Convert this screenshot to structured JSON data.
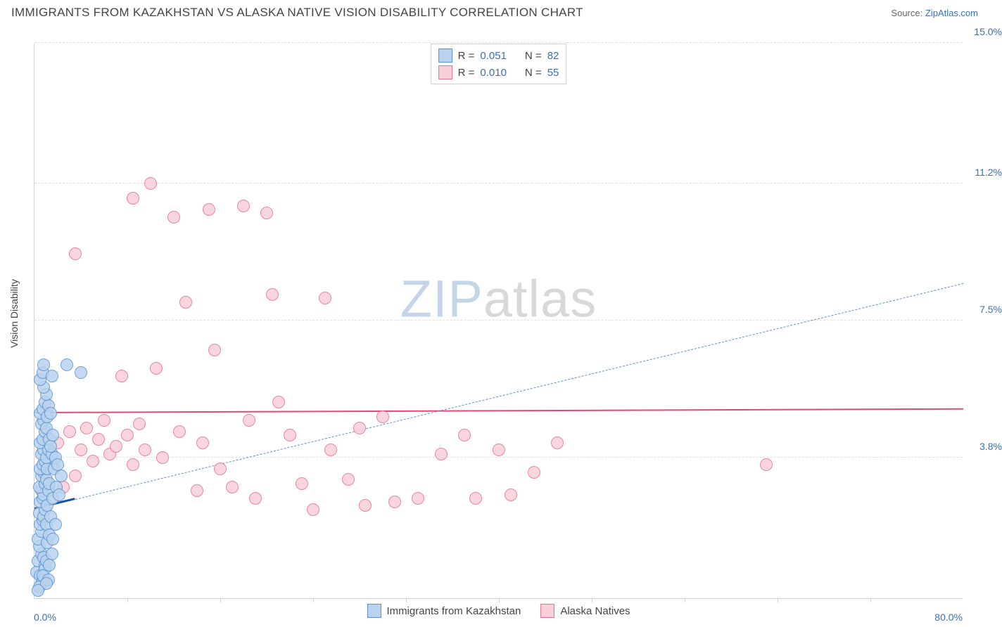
{
  "title": "IMMIGRANTS FROM KAZAKHSTAN VS ALASKA NATIVE VISION DISABILITY CORRELATION CHART",
  "source_label": "Source:",
  "source_name": "ZipAtlas.com",
  "ylabel": "Vision Disability",
  "watermark_a": "ZIP",
  "watermark_b": "atlas",
  "chart": {
    "type": "scatter",
    "xlim": [
      0.0,
      80.0
    ],
    "ylim": [
      0.0,
      15.0
    ],
    "xticks_label_min": "0.0%",
    "xticks_label_max": "80.0%",
    "yticks": [
      {
        "v": 3.8,
        "label": "3.8%"
      },
      {
        "v": 7.5,
        "label": "7.5%"
      },
      {
        "v": 11.2,
        "label": "11.2%"
      },
      {
        "v": 15.0,
        "label": "15.0%"
      }
    ],
    "xticks_minor": [
      8,
      16,
      24,
      32,
      40,
      48,
      56,
      64,
      72
    ],
    "background_color": "#ffffff",
    "grid_color": "#e0e0e0",
    "point_radius": 9,
    "series_a": {
      "name": "Immigrants from Kazakhstan",
      "fill": "#b9d3ef",
      "stroke": "#5a91d1",
      "r_label": "R =",
      "r_value": "0.051",
      "n_label": "N =",
      "n_value": "82",
      "trend_color": "#1b4fa0",
      "trend_dash_color": "#5a91d1",
      "trend_start_y": 2.4,
      "trend_end_y": 8.5,
      "solid_end_x": 3.5,
      "points": [
        [
          0.2,
          0.7
        ],
        [
          0.3,
          1.0
        ],
        [
          0.5,
          0.6
        ],
        [
          0.6,
          1.2
        ],
        [
          0.7,
          0.5
        ],
        [
          0.4,
          1.4
        ],
        [
          0.8,
          1.1
        ],
        [
          0.9,
          0.9
        ],
        [
          0.3,
          1.6
        ],
        [
          0.6,
          1.8
        ],
        [
          0.5,
          2.0
        ],
        [
          0.7,
          2.1
        ],
        [
          0.4,
          2.3
        ],
        [
          0.8,
          2.2
        ],
        [
          0.9,
          2.4
        ],
        [
          1.0,
          2.0
        ],
        [
          0.5,
          2.6
        ],
        [
          0.7,
          2.7
        ],
        [
          0.6,
          2.9
        ],
        [
          0.8,
          2.8
        ],
        [
          1.1,
          2.5
        ],
        [
          0.4,
          3.0
        ],
        [
          0.9,
          3.1
        ],
        [
          1.2,
          2.9
        ],
        [
          0.6,
          3.3
        ],
        [
          0.8,
          3.4
        ],
        [
          1.0,
          3.2
        ],
        [
          0.5,
          3.5
        ],
        [
          0.7,
          3.6
        ],
        [
          1.3,
          3.1
        ],
        [
          0.9,
          3.7
        ],
        [
          1.1,
          3.5
        ],
        [
          0.6,
          3.9
        ],
        [
          0.8,
          4.0
        ],
        [
          1.0,
          3.8
        ],
        [
          0.5,
          4.2
        ],
        [
          0.7,
          4.3
        ],
        [
          1.2,
          4.0
        ],
        [
          0.9,
          4.5
        ],
        [
          0.6,
          4.7
        ],
        [
          0.8,
          4.8
        ],
        [
          1.0,
          4.6
        ],
        [
          0.5,
          5.0
        ],
        [
          0.7,
          5.1
        ],
        [
          1.1,
          4.9
        ],
        [
          0.9,
          5.3
        ],
        [
          1.3,
          4.3
        ],
        [
          1.5,
          3.9
        ],
        [
          1.7,
          3.5
        ],
        [
          1.4,
          4.1
        ],
        [
          1.6,
          4.4
        ],
        [
          1.8,
          3.8
        ],
        [
          2.0,
          3.6
        ],
        [
          1.2,
          5.2
        ],
        [
          1.0,
          5.5
        ],
        [
          0.8,
          5.7
        ],
        [
          0.6,
          0.4
        ],
        [
          0.9,
          0.8
        ],
        [
          1.1,
          1.5
        ],
        [
          1.4,
          2.2
        ],
        [
          1.6,
          2.7
        ],
        [
          1.9,
          3.0
        ],
        [
          0.4,
          0.3
        ],
        [
          0.7,
          0.6
        ],
        [
          1.0,
          1.0
        ],
        [
          1.3,
          1.7
        ],
        [
          0.5,
          5.9
        ],
        [
          0.7,
          6.1
        ],
        [
          1.2,
          0.5
        ],
        [
          1.5,
          1.2
        ],
        [
          1.8,
          2.0
        ],
        [
          2.1,
          2.8
        ],
        [
          1.0,
          0.4
        ],
        [
          1.3,
          0.9
        ],
        [
          1.6,
          1.6
        ],
        [
          0.3,
          0.2
        ],
        [
          0.8,
          6.3
        ],
        [
          1.4,
          5.0
        ],
        [
          2.3,
          3.3
        ],
        [
          2.8,
          6.3
        ],
        [
          1.5,
          6.0
        ],
        [
          4.0,
          6.1
        ]
      ]
    },
    "series_b": {
      "name": "Alaska Natives",
      "fill": "#f8d0da",
      "stroke": "#e76f8f",
      "r_label": "R =",
      "r_value": "0.010",
      "n_label": "N =",
      "n_value": "55",
      "trend_color": "#e24a73",
      "trend_start_y": 5.0,
      "trend_end_y": 5.1,
      "points": [
        [
          2.0,
          4.2
        ],
        [
          2.5,
          3.0
        ],
        [
          3.0,
          4.5
        ],
        [
          3.5,
          3.3
        ],
        [
          4.0,
          4.0
        ],
        [
          4.5,
          4.6
        ],
        [
          5.0,
          3.7
        ],
        [
          5.5,
          4.3
        ],
        [
          6.0,
          4.8
        ],
        [
          6.5,
          3.9
        ],
        [
          7.0,
          4.1
        ],
        [
          7.5,
          6.0
        ],
        [
          8.0,
          4.4
        ],
        [
          8.5,
          3.6
        ],
        [
          9.0,
          4.7
        ],
        [
          9.5,
          4.0
        ],
        [
          10.0,
          11.2
        ],
        [
          10.5,
          6.2
        ],
        [
          11.0,
          3.8
        ],
        [
          12.0,
          10.3
        ],
        [
          12.5,
          4.5
        ],
        [
          13.0,
          8.0
        ],
        [
          14.0,
          2.9
        ],
        [
          14.5,
          4.2
        ],
        [
          15.0,
          10.5
        ],
        [
          15.5,
          6.7
        ],
        [
          16.0,
          3.5
        ],
        [
          17.0,
          3.0
        ],
        [
          18.0,
          10.6
        ],
        [
          18.5,
          4.8
        ],
        [
          19.0,
          2.7
        ],
        [
          20.0,
          10.4
        ],
        [
          20.5,
          8.2
        ],
        [
          21.0,
          5.3
        ],
        [
          22.0,
          4.4
        ],
        [
          23.0,
          3.1
        ],
        [
          24.0,
          2.4
        ],
        [
          25.0,
          8.1
        ],
        [
          25.5,
          4.0
        ],
        [
          27.0,
          3.2
        ],
        [
          28.0,
          4.6
        ],
        [
          28.5,
          2.5
        ],
        [
          30.0,
          4.9
        ],
        [
          31.0,
          2.6
        ],
        [
          33.0,
          2.7
        ],
        [
          35.0,
          3.9
        ],
        [
          37.0,
          4.4
        ],
        [
          38.0,
          2.7
        ],
        [
          40.0,
          4.0
        ],
        [
          41.0,
          2.8
        ],
        [
          43.0,
          3.4
        ],
        [
          45.0,
          4.2
        ],
        [
          63.0,
          3.6
        ],
        [
          3.5,
          9.3
        ],
        [
          8.5,
          10.8
        ]
      ]
    }
  }
}
